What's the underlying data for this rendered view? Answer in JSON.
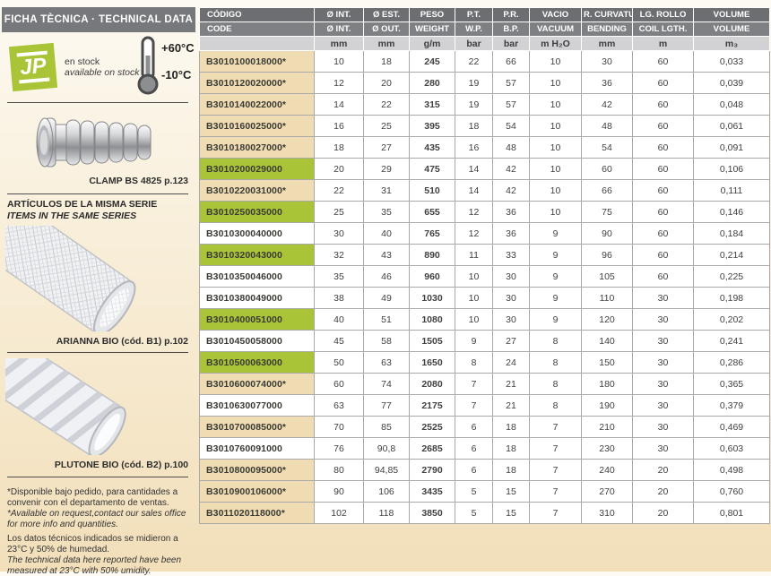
{
  "colors": {
    "green": "#a9c437",
    "tan": "#efdcb2",
    "titlebar": "#77787b",
    "hdr1": "#6d6e71",
    "hdr2": "#7f8084",
    "hdr3": "#d2d2d4"
  },
  "sidebar": {
    "title": "FICHA TÈCNICA · TECHNICAL DATA",
    "stock": {
      "logo": "JP",
      "line_es": "en stock",
      "line_en": "available on stock"
    },
    "temperature": {
      "max": "+60°C",
      "min": "-10°C"
    },
    "fitting_caption": "CLAMP BS 4825 p.123",
    "series_heading_es": "ARTÍCULOS DE LA MISMA SERIE",
    "series_heading_en": "ITEMS IN THE SAME SERIES",
    "series_items": [
      {
        "caption": "ARIANNA BIO (cód. B1) p.102"
      },
      {
        "caption": "PLUTONE BIO (cód. B2) p.100"
      }
    ],
    "footnotes": {
      "available_es": "*Disponible bajo pedido, para cantidades a convenir con el departamento de ventas.",
      "available_en": "*Available on request,contact our sales office for more info and quantities.",
      "measured_es": "Los datos técnicos indicados se midieron a 23°C y 50% de humedad.",
      "measured_en": "The technical data here reported have been measured at 23°C with 50% umidity."
    }
  },
  "table": {
    "header": {
      "row1": [
        "CÓDIGO",
        "Ø INT.",
        "Ø EST.",
        "PESO",
        "P.T.",
        "P.R.",
        "VACIO",
        "R. CURVATURA",
        "LG. ROLLO",
        "VOLUME"
      ],
      "row2": [
        "CODE",
        "Ø INT.",
        "Ø OUT.",
        "WEIGHT",
        "W.P.",
        "B.P.",
        "VACUUM",
        "BENDING",
        "COIL LGTH.",
        "VOLUME"
      ],
      "row3": [
        "",
        "mm",
        "mm",
        "g/m",
        "bar",
        "bar",
        "m H₂O",
        "mm",
        "m",
        "m₃"
      ]
    },
    "rows": [
      {
        "code": "B3010100018000*",
        "highlight": "tan",
        "values": [
          "10",
          "18",
          "245",
          "22",
          "66",
          "10",
          "30",
          "60",
          "0,033"
        ]
      },
      {
        "code": "B3010120020000*",
        "highlight": "tan",
        "values": [
          "12",
          "20",
          "280",
          "19",
          "57",
          "10",
          "36",
          "60",
          "0,039"
        ]
      },
      {
        "code": "B3010140022000*",
        "highlight": "tan",
        "values": [
          "14",
          "22",
          "315",
          "19",
          "57",
          "10",
          "42",
          "60",
          "0,048"
        ]
      },
      {
        "code": "B3010160025000*",
        "highlight": "tan",
        "values": [
          "16",
          "25",
          "395",
          "18",
          "54",
          "10",
          "48",
          "60",
          "0,061"
        ]
      },
      {
        "code": "B3010180027000*",
        "highlight": "tan",
        "values": [
          "18",
          "27",
          "435",
          "16",
          "48",
          "10",
          "54",
          "60",
          "0,091"
        ]
      },
      {
        "code": "B3010200029000",
        "highlight": "green",
        "values": [
          "20",
          "29",
          "475",
          "14",
          "42",
          "10",
          "60",
          "60",
          "0,106"
        ]
      },
      {
        "code": "B3010220031000*",
        "highlight": "tan",
        "values": [
          "22",
          "31",
          "510",
          "14",
          "42",
          "10",
          "66",
          "60",
          "0,111"
        ]
      },
      {
        "code": "B3010250035000",
        "highlight": "green",
        "values": [
          "25",
          "35",
          "655",
          "12",
          "36",
          "10",
          "75",
          "60",
          "0,146"
        ]
      },
      {
        "code": "B3010300040000",
        "highlight": "white",
        "values": [
          "30",
          "40",
          "765",
          "12",
          "36",
          "9",
          "90",
          "60",
          "0,184"
        ]
      },
      {
        "code": "B3010320043000",
        "highlight": "green",
        "values": [
          "32",
          "43",
          "890",
          "11",
          "33",
          "9",
          "96",
          "60",
          "0,214"
        ]
      },
      {
        "code": "B3010350046000",
        "highlight": "white",
        "values": [
          "35",
          "46",
          "960",
          "10",
          "30",
          "9",
          "105",
          "60",
          "0,225"
        ]
      },
      {
        "code": "B3010380049000",
        "highlight": "white",
        "values": [
          "38",
          "49",
          "1030",
          "10",
          "30",
          "9",
          "110",
          "30",
          "0,198"
        ]
      },
      {
        "code": "B3010400051000",
        "highlight": "green",
        "values": [
          "40",
          "51",
          "1080",
          "10",
          "30",
          "9",
          "120",
          "30",
          "0,202"
        ]
      },
      {
        "code": "B3010450058000",
        "highlight": "white",
        "values": [
          "45",
          "58",
          "1505",
          "9",
          "27",
          "8",
          "140",
          "30",
          "0,241"
        ]
      },
      {
        "code": "B3010500063000",
        "highlight": "green",
        "values": [
          "50",
          "63",
          "1650",
          "8",
          "24",
          "8",
          "150",
          "30",
          "0,286"
        ]
      },
      {
        "code": "B3010600074000*",
        "highlight": "tan",
        "values": [
          "60",
          "74",
          "2080",
          "7",
          "21",
          "8",
          "180",
          "30",
          "0,365"
        ]
      },
      {
        "code": "B3010630077000",
        "highlight": "white",
        "values": [
          "63",
          "77",
          "2175",
          "7",
          "21",
          "8",
          "190",
          "30",
          "0,379"
        ]
      },
      {
        "code": "B3010700085000*",
        "highlight": "tan",
        "values": [
          "70",
          "85",
          "2525",
          "6",
          "18",
          "7",
          "210",
          "30",
          "0,469"
        ]
      },
      {
        "code": "B3010760091000",
        "highlight": "white",
        "values": [
          "76",
          "90,8",
          "2685",
          "6",
          "18",
          "7",
          "230",
          "30",
          "0,603"
        ]
      },
      {
        "code": "B3010800095000*",
        "highlight": "tan",
        "values": [
          "80",
          "94,85",
          "2790",
          "6",
          "18",
          "7",
          "240",
          "20",
          "0,498"
        ]
      },
      {
        "code": "B3010900106000*",
        "highlight": "tan",
        "values": [
          "90",
          "106",
          "3435",
          "5",
          "15",
          "7",
          "270",
          "20",
          "0,760"
        ]
      },
      {
        "code": "B3011020118000*",
        "highlight": "tan",
        "values": [
          "102",
          "118",
          "3850",
          "5",
          "15",
          "7",
          "310",
          "20",
          "0,801"
        ]
      }
    ]
  }
}
